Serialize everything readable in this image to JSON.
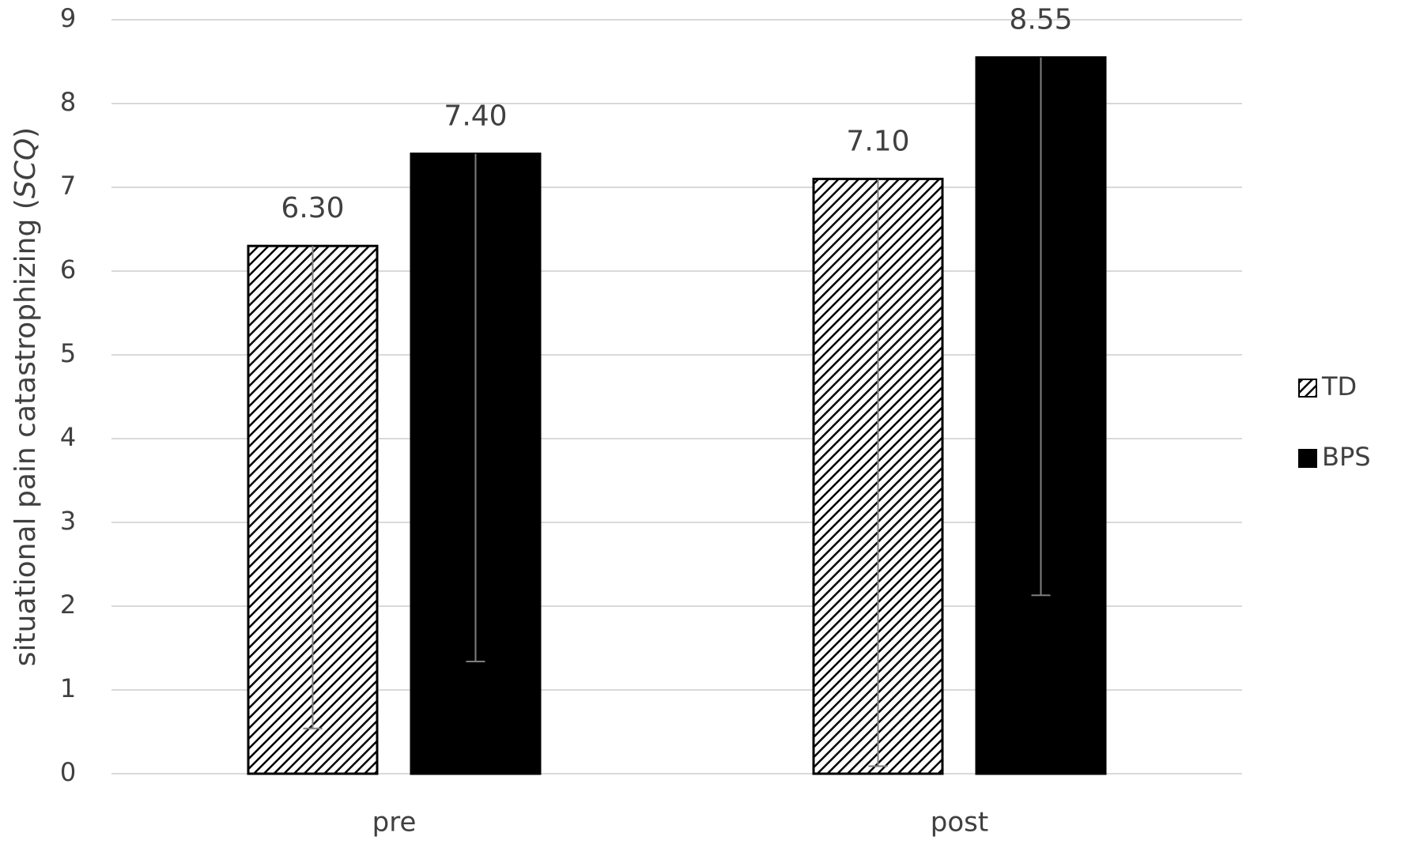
{
  "chart_data": {
    "type": "bar",
    "ylabel": [
      "situational pain catastrophizing (",
      "SCQ",
      ")"
    ],
    "categories": [
      "pre",
      "post"
    ],
    "series": [
      {
        "name": "TD",
        "color": "#000000",
        "pattern": "hatch",
        "values": [
          6.3,
          7.1
        ],
        "value_labels": [
          "6.30",
          "7.10"
        ],
        "errors": [
          5.76,
          7.01
        ]
      },
      {
        "name": "BPS",
        "color": "#000000",
        "values": [
          7.4,
          8.55
        ],
        "value_labels": [
          "7.40",
          "8.55"
        ],
        "errors": [
          6.06,
          6.42
        ]
      }
    ],
    "error_direction": "minus",
    "ylim": [
      0,
      9
    ],
    "yticks": [
      0,
      1,
      2,
      3,
      4,
      5,
      6,
      7,
      8,
      9
    ],
    "grid": true,
    "legend": "right"
  }
}
